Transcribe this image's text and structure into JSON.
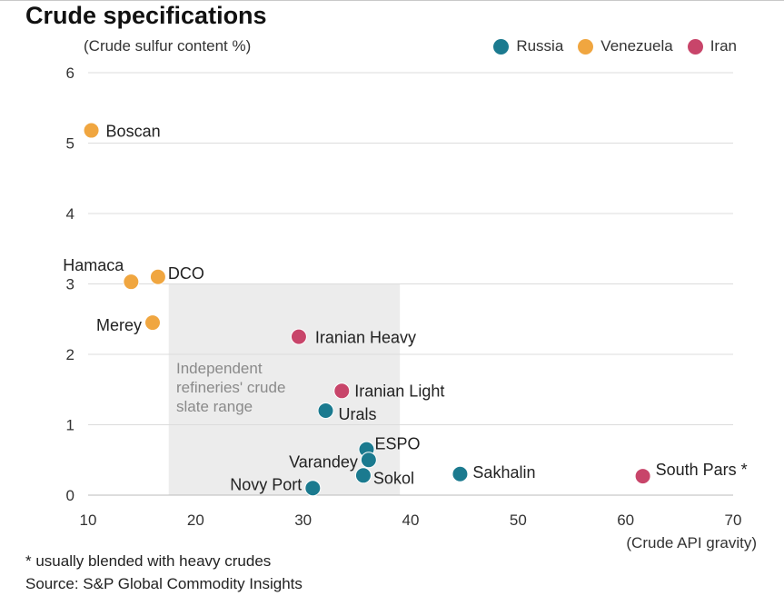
{
  "title": "Crude specifications",
  "footnote": "* usually blended with heavy crudes",
  "source": "Source: S&P Global Commodity Insights",
  "chart_data": {
    "type": "scatter",
    "ylabel": "(Crude sulfur content %)",
    "xlabel": "(Crude API gravity)",
    "xlim": [
      10,
      70
    ],
    "ylim": [
      0,
      6
    ],
    "xticks": [
      "10",
      "20",
      "30",
      "40",
      "50",
      "60",
      "70"
    ],
    "yticks": [
      "0",
      "1",
      "2",
      "3",
      "4",
      "5",
      "6"
    ],
    "grid": "horizontal",
    "legend_position": "top-right",
    "series": [
      {
        "name": "Russia",
        "color": "#1b7a8f",
        "points": [
          {
            "label": "Urals",
            "x": 32.1,
            "y": 1.2
          },
          {
            "label": "ESPO",
            "x": 35.9,
            "y": 0.65
          },
          {
            "label": "Varandey",
            "x": 36.1,
            "y": 0.5
          },
          {
            "label": "Sokol",
            "x": 35.6,
            "y": 0.28
          },
          {
            "label": "Novy Port",
            "x": 30.9,
            "y": 0.1
          },
          {
            "label": "Sakhalin",
            "x": 44.6,
            "y": 0.3
          }
        ]
      },
      {
        "name": "Venezuela",
        "color": "#f0a640",
        "points": [
          {
            "label": "Boscan",
            "x": 10.3,
            "y": 5.18
          },
          {
            "label": "Hamaca",
            "x": 14.0,
            "y": 3.03
          },
          {
            "label": "DCO",
            "x": 16.5,
            "y": 3.1
          },
          {
            "label": "Merey",
            "x": 16.0,
            "y": 2.45
          }
        ]
      },
      {
        "name": "Iran",
        "color": "#c8456a",
        "points": [
          {
            "label": "Iranian Heavy",
            "x": 29.6,
            "y": 2.25
          },
          {
            "label": "Iranian Light",
            "x": 33.6,
            "y": 1.48
          },
          {
            "label": "South Pars *",
            "x": 61.6,
            "y": 0.27
          }
        ]
      }
    ],
    "annotations": [
      {
        "text": "Independent refineries' crude slate range",
        "lines": [
          "Independent",
          "refineries' crude",
          "slate range"
        ],
        "x_range": [
          17.5,
          39
        ],
        "y_range": [
          0,
          3
        ],
        "fill": "#ececec"
      }
    ]
  }
}
